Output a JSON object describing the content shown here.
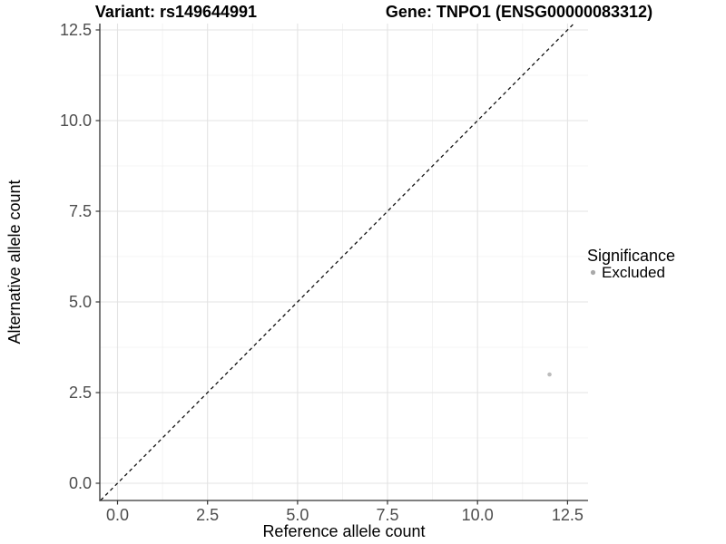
{
  "chart_data": {
    "type": "scatter",
    "titles": {
      "left": "Variant: rs149644991",
      "right": "Gene: TNPO1 (ENSG00000083312)"
    },
    "xlabel": "Reference allele count",
    "ylabel": "Alternative allele count",
    "x_tick_labels": [
      "0.0",
      "2.5",
      "5.0",
      "7.5",
      "10.0",
      "12.5"
    ],
    "y_tick_labels": [
      "0.0",
      "2.5",
      "5.0",
      "7.5",
      "10.0",
      "12.5"
    ],
    "x_tick_values": [
      0,
      2.5,
      5,
      7.5,
      10,
      12.5
    ],
    "y_tick_values": [
      0,
      2.5,
      5,
      7.5,
      10,
      12.5
    ],
    "xlim": [
      -0.5,
      13.1
    ],
    "ylim": [
      -0.5,
      12.7
    ],
    "grid": {
      "major": true,
      "minor": true
    },
    "background": "#ffffff",
    "axis_color": "#333333",
    "reference_line": {
      "equation": "y = x",
      "style": "dashed",
      "color": "#111111"
    },
    "series": [
      {
        "name": "Excluded",
        "color": "#bcbcbc",
        "marker": "circle",
        "points": [
          {
            "x": 12,
            "y": 3
          }
        ]
      }
    ],
    "legend": {
      "title": "Significance",
      "position": "right",
      "items": [
        {
          "label": "Excluded",
          "color": "#a9a9a9"
        }
      ]
    }
  }
}
